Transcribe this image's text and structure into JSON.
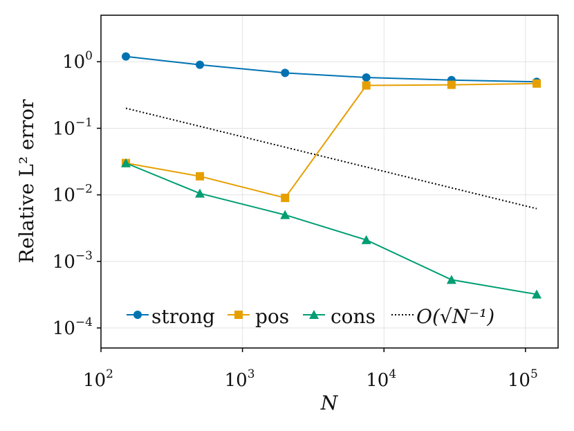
{
  "chart_data": {
    "type": "line",
    "xlabel": "N",
    "ylabel": "Relative L² error",
    "xscale": "log",
    "yscale": "log",
    "xlim": [
      100,
      170000
    ],
    "ylim": [
      5e-05,
      5
    ],
    "x_ticks": [
      {
        "base": "10",
        "exp": "2",
        "value": 100
      },
      {
        "base": "10",
        "exp": "3",
        "value": 1000
      },
      {
        "base": "10",
        "exp": "4",
        "value": 10000
      },
      {
        "base": "10",
        "exp": "5",
        "value": 100000
      }
    ],
    "y_ticks": [
      {
        "base": "10",
        "exp": "0",
        "value": 1
      },
      {
        "base": "10",
        "exp": "−1",
        "value": 0.1
      },
      {
        "base": "10",
        "exp": "−2",
        "value": 0.01
      },
      {
        "base": "10",
        "exp": "−3",
        "value": 0.001
      },
      {
        "base": "10",
        "exp": "−4",
        "value": 0.0001
      }
    ],
    "grid": true,
    "legend_position": "bottom",
    "x": [
      150,
      500,
      2000,
      7500,
      30000,
      120000
    ],
    "series": [
      {
        "name": "strong",
        "color": "#0072B2",
        "marker": "circle",
        "values": [
          1.2,
          0.9,
          0.68,
          0.58,
          0.53,
          0.5
        ]
      },
      {
        "name": "pos",
        "color": "#E69F00",
        "marker": "square",
        "values": [
          0.03,
          0.019,
          0.009,
          0.44,
          0.45,
          0.47
        ]
      },
      {
        "name": "cons",
        "color": "#009E73",
        "marker": "triangle",
        "values": [
          0.03,
          0.0105,
          0.005,
          0.0021,
          0.00053,
          0.00032
        ]
      }
    ],
    "reference_line": {
      "name": "O(√N⁻¹)",
      "style": "dotted",
      "color": "#000000",
      "x": [
        150,
        120000
      ],
      "values": [
        0.2,
        0.0062
      ]
    }
  }
}
